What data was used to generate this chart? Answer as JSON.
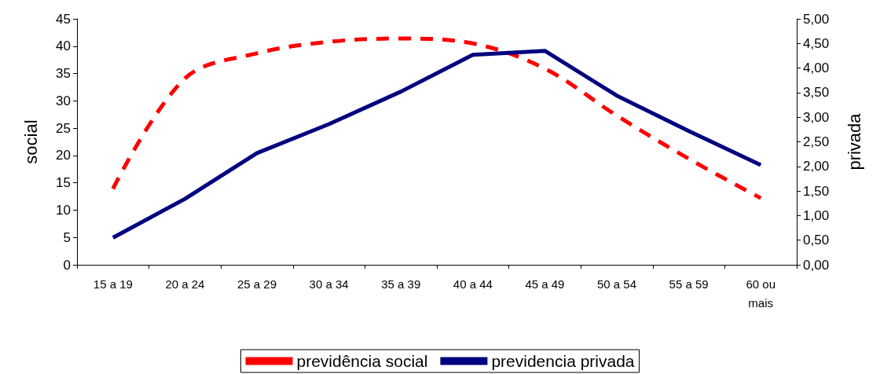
{
  "chart_data": {
    "type": "line",
    "ylabel": "social",
    "y2label": "privada",
    "categories": [
      "15 a 19",
      "20 a 24",
      "25 a 29",
      "30 a 34",
      "35 a 39",
      "40 a 44",
      "45 a 49",
      "50 a 54",
      "55 a 59",
      "60 ou\nmais"
    ],
    "series": [
      {
        "name": "previdência social",
        "color": "#ff0000",
        "line_style": "dashed",
        "values": [
          13.9,
          34.1,
          38.7,
          40.8,
          41.4,
          40.5,
          35.9,
          27.3,
          19.4,
          12.2
        ]
      },
      {
        "name": "previdencia privada",
        "color": "#000080",
        "line_style": "solid",
        "axis": "y2",
        "values": [
          0.55,
          1.34,
          2.27,
          2.86,
          3.52,
          4.27,
          4.35,
          3.44,
          2.72,
          2.03
        ]
      }
    ],
    "ylim": [
      0,
      45
    ],
    "yticks": [
      0,
      5,
      10,
      15,
      20,
      25,
      30,
      35,
      40,
      45
    ],
    "y2lim": [
      0,
      5
    ],
    "y2ticks": [
      {
        "value": 0,
        "label": "0,00"
      },
      {
        "value": 0.5,
        "label": "0,50"
      },
      {
        "value": 1,
        "label": "1,00"
      },
      {
        "value": 1.5,
        "label": "1,50"
      },
      {
        "value": 2,
        "label": "2,00"
      },
      {
        "value": 2.5,
        "label": "2,50"
      },
      {
        "value": 3,
        "label": "3,00"
      },
      {
        "value": 3.5,
        "label": "3,50"
      },
      {
        "value": 4,
        "label": "4,00"
      },
      {
        "value": 4.5,
        "label": "4,50"
      },
      {
        "value": 5,
        "label": "5,00"
      }
    ],
    "grid": false,
    "legend": "bottom",
    "marker": "none"
  }
}
